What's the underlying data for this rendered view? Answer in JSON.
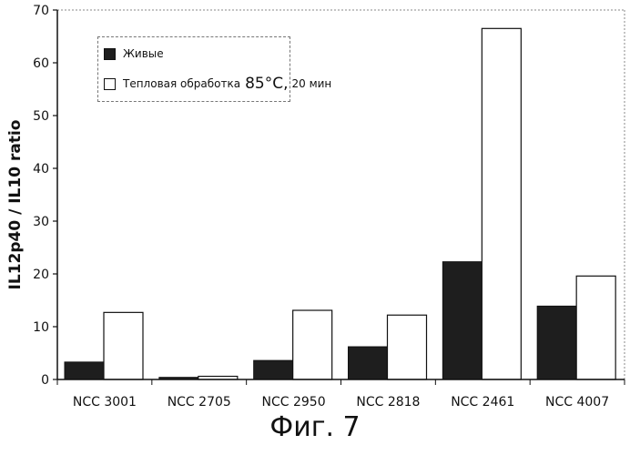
{
  "figure_caption": "Фиг. 7",
  "colors": {
    "live": "#1e1e1e",
    "heat": "#ffffff",
    "outline": "#111111"
  },
  "legend": {
    "live_label": "Живые",
    "heat_label_main": "Тепловая обработка",
    "heat_label_temp": "85°C,",
    "heat_label_time": "20 мин"
  },
  "chart_data": {
    "type": "bar",
    "ylabel": "IL12p40 / IL10 ratio",
    "xlabel": "",
    "ylim": [
      0,
      70
    ],
    "yticks": [
      0,
      10,
      20,
      30,
      40,
      50,
      60,
      70
    ],
    "grid": false,
    "legend_position": "top-left",
    "categories": [
      "NCC 3001",
      "NCC 2705",
      "NCC 2950",
      "NCC 2818",
      "NCC 2461",
      "NCC 4007"
    ],
    "series": [
      {
        "name": "Живые",
        "values": [
          3.3,
          0.4,
          3.6,
          6.2,
          22.3,
          13.9
        ]
      },
      {
        "name": "Тепловая обработка 85°C, 20 мин",
        "values": [
          12.7,
          0.6,
          13.1,
          12.2,
          66.5,
          19.6
        ]
      }
    ]
  }
}
